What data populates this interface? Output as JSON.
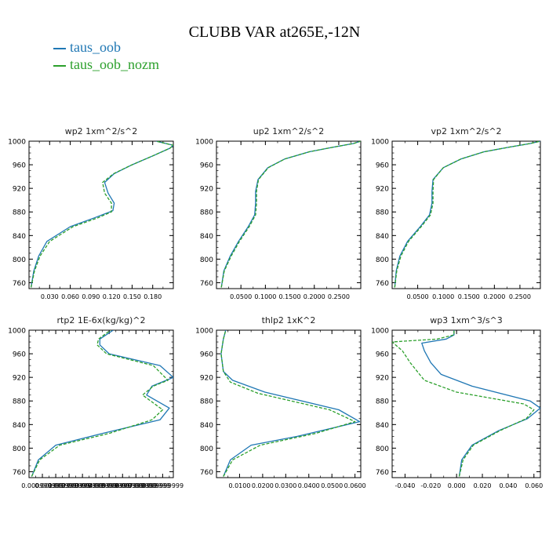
{
  "figure": {
    "title": "CLUBB VAR at265E,-12N",
    "legend": [
      {
        "name": "taus_oob",
        "color": "#1f77b4"
      },
      {
        "name": "taus_oob_nozm",
        "color": "#2ca02c"
      }
    ]
  },
  "chart_data": [
    {
      "type": "line",
      "title": "wp2   1xm^2/s^2",
      "xlim": [
        0.0,
        0.21
      ],
      "ylim": [
        1000,
        750
      ],
      "grid": false,
      "xticks": [
        0.03,
        0.06,
        0.09,
        0.12,
        0.15,
        0.18
      ],
      "xtick_labels": [
        "0.030",
        "0.060",
        "0.090",
        "0.120",
        "0.150",
        "0.180"
      ],
      "yticks": [
        760,
        800,
        840,
        880,
        920,
        960,
        1000
      ],
      "series": [
        {
          "name": "taus_oob",
          "points": [
            [
              0.003,
              752
            ],
            [
              0.007,
              780
            ],
            [
              0.014,
              805
            ],
            [
              0.026,
              830
            ],
            [
              0.06,
              855
            ],
            [
              0.095,
              870
            ],
            [
              0.122,
              882
            ],
            [
              0.124,
              895
            ],
            [
              0.115,
              912
            ],
            [
              0.11,
              930
            ],
            [
              0.124,
              945
            ],
            [
              0.15,
              960
            ],
            [
              0.18,
              975
            ],
            [
              0.205,
              988
            ],
            [
              0.21,
              993
            ],
            [
              0.185,
              1000
            ]
          ]
        },
        {
          "name": "taus_oob_nozm",
          "points": [
            [
              0.003,
              752
            ],
            [
              0.008,
              780
            ],
            [
              0.016,
              805
            ],
            [
              0.03,
              830
            ],
            [
              0.064,
              855
            ],
            [
              0.1,
              870
            ],
            [
              0.12,
              880
            ],
            [
              0.12,
              895
            ],
            [
              0.11,
              912
            ],
            [
              0.107,
              930
            ],
            [
              0.123,
              945
            ],
            [
              0.15,
              960
            ],
            [
              0.18,
              975
            ],
            [
              0.205,
              988
            ],
            [
              0.21,
              993
            ],
            [
              0.185,
              1000
            ]
          ]
        }
      ]
    },
    {
      "type": "line",
      "title": "up2   1xm^2/s^2",
      "xlim": [
        0.0,
        0.295
      ],
      "ylim": [
        1000,
        750
      ],
      "grid": false,
      "xticks": [
        0.05,
        0.1,
        0.15,
        0.2,
        0.25
      ],
      "xtick_labels": [
        "0.0500",
        "0.1000",
        "0.1500",
        "0.2000",
        "0.2500"
      ],
      "yticks": [
        760,
        800,
        840,
        880,
        920,
        960,
        1000
      ],
      "series": [
        {
          "name": "taus_oob",
          "points": [
            [
              0.01,
              752
            ],
            [
              0.015,
              780
            ],
            [
              0.028,
              805
            ],
            [
              0.045,
              830
            ],
            [
              0.065,
              855
            ],
            [
              0.078,
              875
            ],
            [
              0.08,
              895
            ],
            [
              0.08,
              915
            ],
            [
              0.085,
              935
            ],
            [
              0.105,
              955
            ],
            [
              0.14,
              970
            ],
            [
              0.19,
              982
            ],
            [
              0.24,
              990
            ],
            [
              0.28,
              996
            ],
            [
              0.295,
              1000
            ]
          ]
        },
        {
          "name": "taus_oob_nozm",
          "points": [
            [
              0.01,
              752
            ],
            [
              0.016,
              780
            ],
            [
              0.03,
              805
            ],
            [
              0.047,
              830
            ],
            [
              0.067,
              855
            ],
            [
              0.08,
              875
            ],
            [
              0.082,
              895
            ],
            [
              0.082,
              915
            ],
            [
              0.086,
              935
            ],
            [
              0.106,
              955
            ],
            [
              0.14,
              970
            ],
            [
              0.19,
              982
            ],
            [
              0.24,
              990
            ],
            [
              0.28,
              996
            ],
            [
              0.295,
              1000
            ]
          ]
        }
      ]
    },
    {
      "type": "line",
      "title": "vp2   1xm^2/s^2",
      "xlim": [
        0.0,
        0.29
      ],
      "ylim": [
        1000,
        750
      ],
      "grid": false,
      "xticks": [
        0.05,
        0.1,
        0.15,
        0.2,
        0.25
      ],
      "xtick_labels": [
        "0.0500",
        "0.1000",
        "0.1500",
        "0.2000",
        "0.2500"
      ],
      "yticks": [
        760,
        800,
        840,
        880,
        920,
        960,
        1000
      ],
      "series": [
        {
          "name": "taus_oob",
          "points": [
            [
              0.005,
              752
            ],
            [
              0.008,
              780
            ],
            [
              0.015,
              805
            ],
            [
              0.03,
              830
            ],
            [
              0.055,
              855
            ],
            [
              0.073,
              875
            ],
            [
              0.078,
              895
            ],
            [
              0.078,
              915
            ],
            [
              0.08,
              935
            ],
            [
              0.1,
              955
            ],
            [
              0.135,
              970
            ],
            [
              0.18,
              982
            ],
            [
              0.23,
              990
            ],
            [
              0.27,
              996
            ],
            [
              0.29,
              1000
            ]
          ]
        },
        {
          "name": "taus_oob_nozm",
          "points": [
            [
              0.005,
              752
            ],
            [
              0.009,
              780
            ],
            [
              0.017,
              805
            ],
            [
              0.032,
              830
            ],
            [
              0.057,
              855
            ],
            [
              0.075,
              875
            ],
            [
              0.08,
              895
            ],
            [
              0.08,
              915
            ],
            [
              0.081,
              935
            ],
            [
              0.1,
              955
            ],
            [
              0.135,
              970
            ],
            [
              0.18,
              982
            ],
            [
              0.23,
              990
            ],
            [
              0.27,
              996
            ],
            [
              0.29,
              1000
            ]
          ]
        }
      ]
    },
    {
      "type": "line",
      "title": "rtp2   1E-6x(kg/kg)^2",
      "xlim": [
        0.0,
        0.0108
      ],
      "ylim": [
        1000,
        750
      ],
      "grid": false,
      "xticks": [
        0.001,
        0.002,
        0.003,
        0.004,
        0.005,
        0.006,
        0.007,
        0.008,
        0.009,
        0.01
      ],
      "xtick_labels": [
        "0.000999999",
        "0.001999999",
        "0.002999999",
        "0.003999999",
        "0.004999999",
        "0.005999999",
        "0.006999999",
        "0.007999999",
        "0.008999999",
        "0.009999999"
      ],
      "yticks": [
        760,
        800,
        840,
        880,
        920,
        960,
        1000
      ],
      "series": [
        {
          "name": "taus_oob",
          "points": [
            [
              0.0002,
              752
            ],
            [
              0.0007,
              780
            ],
            [
              0.002,
              805
            ],
            [
              0.0055,
              825
            ],
            [
              0.0098,
              848
            ],
            [
              0.0105,
              868
            ],
            [
              0.0088,
              890
            ],
            [
              0.0092,
              905
            ],
            [
              0.0108,
              920
            ],
            [
              0.0098,
              940
            ],
            [
              0.006,
              960
            ],
            [
              0.0053,
              975
            ],
            [
              0.0053,
              985
            ],
            [
              0.0063,
              1000
            ]
          ]
        },
        {
          "name": "taus_oob_nozm",
          "points": [
            [
              0.0002,
              752
            ],
            [
              0.0008,
              780
            ],
            [
              0.0023,
              805
            ],
            [
              0.006,
              825
            ],
            [
              0.0092,
              848
            ],
            [
              0.01,
              865
            ],
            [
              0.0085,
              890
            ],
            [
              0.0093,
              905
            ],
            [
              0.0104,
              915
            ],
            [
              0.0093,
              940
            ],
            [
              0.0058,
              960
            ],
            [
              0.0051,
              975
            ],
            [
              0.0052,
              985
            ],
            [
              0.0061,
              1000
            ]
          ]
        }
      ]
    },
    {
      "type": "line",
      "title": "thlp2   1xK^2",
      "xlim": [
        0.0,
        0.0625
      ],
      "ylim": [
        1000,
        750
      ],
      "grid": false,
      "xticks": [
        0.01,
        0.02,
        0.03,
        0.04,
        0.05,
        0.06
      ],
      "xtick_labels": [
        "0.0100",
        "0.0200",
        "0.0300",
        "0.0400",
        "0.0500",
        "0.0600"
      ],
      "yticks": [
        760,
        800,
        840,
        880,
        920,
        960,
        1000
      ],
      "series": [
        {
          "name": "taus_oob",
          "points": [
            [
              0.003,
              752
            ],
            [
              0.006,
              780
            ],
            [
              0.015,
              805
            ],
            [
              0.035,
              820
            ],
            [
              0.062,
              845
            ],
            [
              0.053,
              865
            ],
            [
              0.021,
              895
            ],
            [
              0.007,
              915
            ],
            [
              0.003,
              930
            ],
            [
              0.002,
              960
            ],
            [
              0.003,
              985
            ],
            [
              0.004,
              1000
            ]
          ]
        },
        {
          "name": "taus_oob_nozm",
          "points": [
            [
              0.003,
              752
            ],
            [
              0.007,
              780
            ],
            [
              0.019,
              805
            ],
            [
              0.043,
              825
            ],
            [
              0.06,
              845
            ],
            [
              0.049,
              865
            ],
            [
              0.018,
              893
            ],
            [
              0.006,
              912
            ],
            [
              0.003,
              930
            ],
            [
              0.002,
              960
            ],
            [
              0.003,
              985
            ],
            [
              0.004,
              1000
            ]
          ]
        }
      ]
    },
    {
      "type": "line",
      "title": "wp3   1xm^3/s^3",
      "xlim": [
        -0.05,
        0.065
      ],
      "ylim": [
        1000,
        750
      ],
      "grid": false,
      "xticks": [
        -0.04,
        -0.02,
        0.0,
        0.02,
        0.04,
        0.06
      ],
      "xtick_labels": [
        "-0.040",
        "-0.020",
        "0.000",
        "0.020",
        "0.040",
        "0.060"
      ],
      "yticks": [
        760,
        800,
        840,
        880,
        920,
        960,
        1000
      ],
      "series": [
        {
          "name": "taus_oob",
          "points": [
            [
              0.002,
              752
            ],
            [
              0.004,
              780
            ],
            [
              0.012,
              805
            ],
            [
              0.033,
              830
            ],
            [
              0.055,
              850
            ],
            [
              0.065,
              868
            ],
            [
              0.057,
              880
            ],
            [
              0.012,
              905
            ],
            [
              -0.012,
              925
            ],
            [
              -0.02,
              945
            ],
            [
              -0.025,
              965
            ],
            [
              -0.027,
              978
            ],
            [
              -0.008,
              985
            ],
            [
              -0.002,
              992
            ],
            [
              -0.002,
              1000
            ]
          ]
        },
        {
          "name": "taus_oob_nozm",
          "points": [
            [
              0.002,
              752
            ],
            [
              0.005,
              780
            ],
            [
              0.013,
              805
            ],
            [
              0.034,
              830
            ],
            [
              0.054,
              850
            ],
            [
              0.06,
              865
            ],
            [
              0.052,
              875
            ],
            [
              0.0,
              895
            ],
            [
              -0.025,
              915
            ],
            [
              -0.036,
              945
            ],
            [
              -0.042,
              965
            ],
            [
              -0.05,
              980
            ],
            [
              -0.015,
              985
            ],
            [
              -0.002,
              992
            ],
            [
              -0.002,
              1000
            ]
          ]
        }
      ]
    }
  ]
}
